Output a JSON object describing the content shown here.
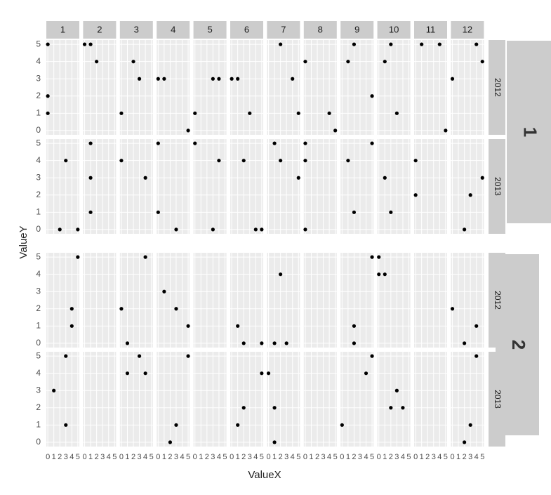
{
  "chart_data": {
    "type": "scatter",
    "x_label": "ValueX",
    "y_label": "ValueY",
    "xlim": [
      -0.25,
      5.25
    ],
    "ylim": [
      -0.25,
      5.25
    ],
    "xticks": [
      0,
      1,
      2,
      3,
      4,
      5
    ],
    "yticks": [
      0,
      1,
      2,
      3,
      4,
      5
    ],
    "grid": true,
    "point_color": "#000000",
    "columns": [
      "1",
      "2",
      "3",
      "4",
      "5",
      "6",
      "7",
      "8",
      "9",
      "10",
      "11",
      "12"
    ],
    "groups": [
      {
        "label": "1",
        "rows": [
          {
            "label": "2012",
            "panels": [
              {
                "x": [
                  0,
                  0,
                  0
                ],
                "y": [
                  5,
                  2,
                  1
                ]
              },
              {
                "x": [
                  0,
                  1,
                  2
                ],
                "y": [
                  5,
                  5,
                  4
                ]
              },
              {
                "x": [
                  0,
                  2,
                  3
                ],
                "y": [
                  1,
                  4,
                  3
                ]
              },
              {
                "x": [
                  0,
                  1,
                  5
                ],
                "y": [
                  3,
                  3,
                  0
                ]
              },
              {
                "x": [
                  0,
                  3,
                  4
                ],
                "y": [
                  1,
                  3,
                  3
                ]
              },
              {
                "x": [
                  0,
                  1,
                  3
                ],
                "y": [
                  3,
                  3,
                  1
                ]
              },
              {
                "x": [
                  2,
                  4,
                  5
                ],
                "y": [
                  5,
                  3,
                  1
                ]
              },
              {
                "x": [
                  0,
                  4,
                  5
                ],
                "y": [
                  4,
                  1,
                  0
                ]
              },
              {
                "x": [
                  1,
                  2,
                  5
                ],
                "y": [
                  4,
                  5,
                  2
                ]
              },
              {
                "x": [
                  1,
                  2,
                  3
                ],
                "y": [
                  4,
                  5,
                  1
                ]
              },
              {
                "x": [
                  1,
                  4,
                  5
                ],
                "y": [
                  5,
                  5,
                  0
                ]
              },
              {
                "x": [
                  0,
                  4,
                  5
                ],
                "y": [
                  3,
                  5,
                  4
                ]
              }
            ]
          },
          {
            "label": "2013",
            "panels": [
              {
                "x": [
                  2,
                  3,
                  5
                ],
                "y": [
                  0,
                  4,
                  0
                ]
              },
              {
                "x": [
                  1,
                  1,
                  1
                ],
                "y": [
                  5,
                  3,
                  1
                ]
              },
              {
                "x": [
                  0,
                  4
                ],
                "y": [
                  4,
                  3
                ]
              },
              {
                "x": [
                  0,
                  0,
                  3
                ],
                "y": [
                  5,
                  1,
                  0
                ]
              },
              {
                "x": [
                  0,
                  3,
                  4
                ],
                "y": [
                  5,
                  0,
                  4
                ]
              },
              {
                "x": [
                  2,
                  4,
                  5
                ],
                "y": [
                  4,
                  0,
                  0
                ]
              },
              {
                "x": [
                  1,
                  2,
                  5
                ],
                "y": [
                  5,
                  4,
                  3
                ]
              },
              {
                "x": [
                  0,
                  0,
                  0
                ],
                "y": [
                  5,
                  4,
                  0
                ]
              },
              {
                "x": [
                  1,
                  2,
                  5
                ],
                "y": [
                  4,
                  1,
                  5
                ]
              },
              {
                "x": [
                  1,
                  2
                ],
                "y": [
                  3,
                  1
                ]
              },
              {
                "x": [
                  0,
                  0
                ],
                "y": [
                  4,
                  2
                ]
              },
              {
                "x": [
                  2,
                  3,
                  5
                ],
                "y": [
                  0,
                  2,
                  3
                ]
              }
            ]
          }
        ]
      },
      {
        "label": "2",
        "rows": [
          {
            "label": "2012",
            "panels": [
              {
                "x": [
                  4,
                  4,
                  5
                ],
                "y": [
                  1,
                  2,
                  5
                ]
              },
              {
                "x": [],
                "y": []
              },
              {
                "x": [
                  0,
                  1,
                  4
                ],
                "y": [
                  2,
                  0,
                  5
                ]
              },
              {
                "x": [
                  1,
                  3,
                  5
                ],
                "y": [
                  3,
                  2,
                  1
                ]
              },
              {
                "x": [],
                "y": []
              },
              {
                "x": [
                  1,
                  2,
                  5
                ],
                "y": [
                  1,
                  0,
                  0
                ]
              },
              {
                "x": [
                  1,
                  2,
                  3
                ],
                "y": [
                  0,
                  4,
                  0
                ]
              },
              {
                "x": [],
                "y": []
              },
              {
                "x": [
                  2,
                  2,
                  5
                ],
                "y": [
                  1,
                  0,
                  5
                ]
              },
              {
                "x": [
                  0,
                  0,
                  1
                ],
                "y": [
                  5,
                  4,
                  4
                ]
              },
              {
                "x": [],
                "y": []
              },
              {
                "x": [
                  0,
                  2,
                  4
                ],
                "y": [
                  2,
                  0,
                  1
                ]
              }
            ]
          },
          {
            "label": "2013",
            "panels": [
              {
                "x": [
                  1,
                  3,
                  3
                ],
                "y": [
                  3,
                  5,
                  1
                ]
              },
              {
                "x": [],
                "y": []
              },
              {
                "x": [
                  1,
                  3,
                  4
                ],
                "y": [
                  4,
                  5,
                  4
                ]
              },
              {
                "x": [
                  2,
                  3,
                  5
                ],
                "y": [
                  0,
                  1,
                  5
                ]
              },
              {
                "x": [],
                "y": []
              },
              {
                "x": [
                  1,
                  2,
                  5
                ],
                "y": [
                  1,
                  2,
                  4
                ]
              },
              {
                "x": [
                  0,
                  1,
                  1
                ],
                "y": [
                  4,
                  2,
                  0
                ]
              },
              {
                "x": [],
                "y": []
              },
              {
                "x": [
                  0,
                  4,
                  5
                ],
                "y": [
                  1,
                  4,
                  5
                ]
              },
              {
                "x": [
                  2,
                  3,
                  4
                ],
                "y": [
                  2,
                  3,
                  2
                ]
              },
              {
                "x": [],
                "y": []
              },
              {
                "x": [
                  2,
                  3,
                  4
                ],
                "y": [
                  0,
                  1,
                  5
                ]
              }
            ]
          }
        ]
      }
    ]
  }
}
